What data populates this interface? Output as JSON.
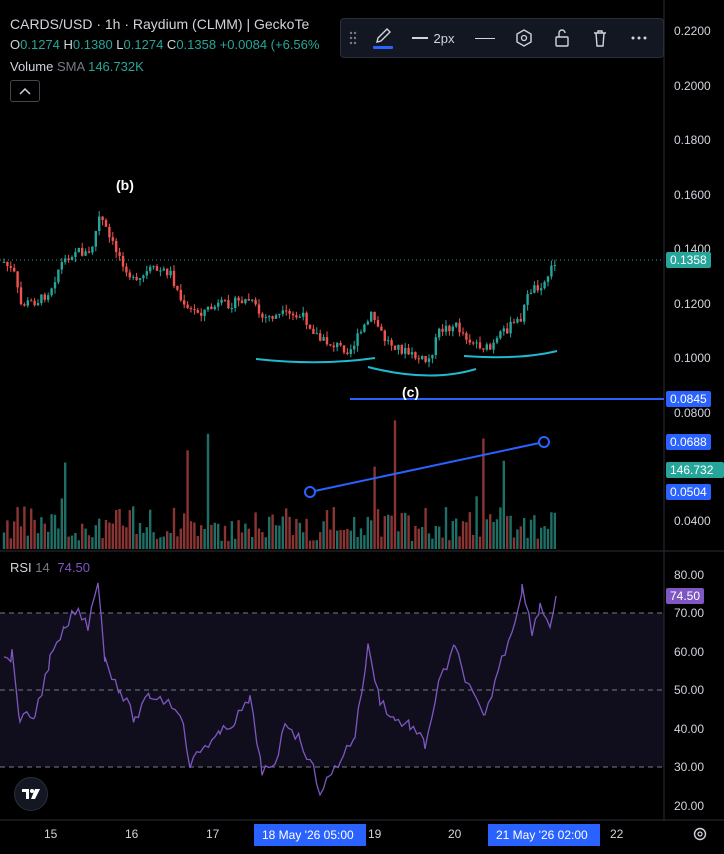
{
  "header": {
    "symbol": "CARDS/USD · 1h · Raydium (CLMM) | GeckoTe",
    "ohlc": [
      {
        "key": "O",
        "value": "0.1274"
      },
      {
        "key": "H",
        "value": "0.1380"
      },
      {
        "key": "L",
        "value": "0.1274"
      },
      {
        "key": "C",
        "value": "0.1358"
      }
    ],
    "change": "+0.0084 (+6.56%",
    "volume_label": "Volume",
    "volume_ma": "SMA",
    "volume_value": "146.732K",
    "collapse_icon": "chevron-up-icon"
  },
  "toolbar": {
    "stroke_width": "2px",
    "icons": [
      "drag-handle-icon",
      "pencil-icon",
      "line-style-icon",
      "hexagon-settings-icon",
      "unlock-icon",
      "trash-icon",
      "more-icon"
    ]
  },
  "price_axis": {
    "ticks": [
      "0.2200",
      "0.2000",
      "0.1800",
      "0.1600",
      "0.1400",
      "0.1200",
      "0.1000",
      "0.0800",
      "0.0400"
    ],
    "tags": {
      "last": "0.1358",
      "horizontal_line": "0.0845",
      "trend_end": "0.0688",
      "volume": "146.732 K",
      "trend_start": "0.0504"
    }
  },
  "annotations": {
    "b": "(b)",
    "c": "(c)"
  },
  "rsi": {
    "label": "RSI",
    "period": "14",
    "value": "74.50",
    "ticks": [
      "80.00",
      "70.00",
      "60.00",
      "50.00",
      "40.00",
      "30.00",
      "20.00"
    ]
  },
  "time_axis": {
    "labels": [
      "15",
      "16",
      "17",
      "19",
      "20",
      "22"
    ],
    "crosshair_left": "18 May '26   05:00",
    "crosshair_right": "21 May '26   02:00"
  },
  "colors": {
    "up": "#26a69a",
    "down": "#ef5350",
    "drawing": "#2962ff",
    "arc": "#22b8cf",
    "rsi": "#7e57c2"
  }
}
